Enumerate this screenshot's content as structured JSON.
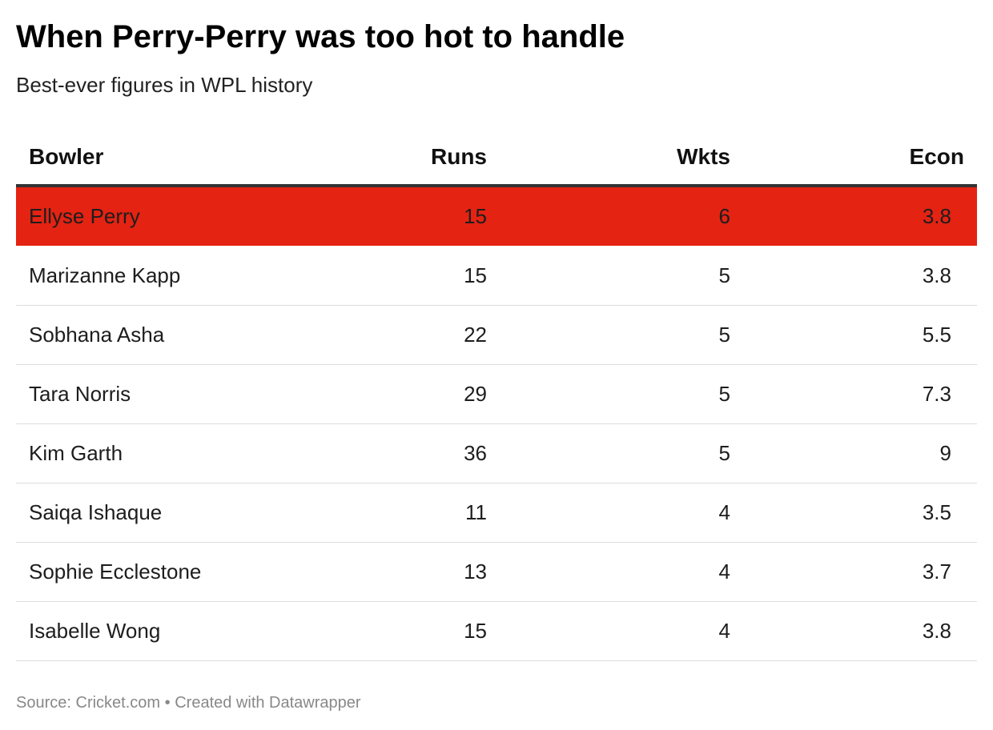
{
  "title": "When Perry-Perry was too hot to handle",
  "subtitle": "Best-ever figures in WPL history",
  "footer": {
    "source_label": "Source:",
    "source_name": "Cricket.com",
    "separator": "•",
    "credit": "Created with Datawrapper"
  },
  "colors": {
    "highlight": "#e42313",
    "header_rule": "#333333",
    "row_divider": "#dddddd",
    "source_text": "#888888"
  },
  "chart_data": {
    "type": "table",
    "title": "When Perry-Perry was too hot to handle",
    "subtitle": "Best-ever figures in WPL history",
    "columns": [
      "Bowler",
      "Runs",
      "Wkts",
      "Econ"
    ],
    "rows": [
      {
        "bowler": "Ellyse Perry",
        "runs": "15",
        "wkts": "6",
        "econ": "3.8",
        "highlighted": true
      },
      {
        "bowler": "Marizanne Kapp",
        "runs": "15",
        "wkts": "5",
        "econ": "3.8",
        "highlighted": false
      },
      {
        "bowler": "Sobhana Asha",
        "runs": "22",
        "wkts": "5",
        "econ": "5.5",
        "highlighted": false
      },
      {
        "bowler": "Tara Norris",
        "runs": "29",
        "wkts": "5",
        "econ": "7.3",
        "highlighted": false
      },
      {
        "bowler": "Kim Garth",
        "runs": "36",
        "wkts": "5",
        "econ": "9",
        "highlighted": false
      },
      {
        "bowler": "Saiqa Ishaque",
        "runs": "11",
        "wkts": "4",
        "econ": "3.5",
        "highlighted": false
      },
      {
        "bowler": "Sophie Ecclestone",
        "runs": "13",
        "wkts": "4",
        "econ": "3.7",
        "highlighted": false
      },
      {
        "bowler": "Isabelle Wong",
        "runs": "15",
        "wkts": "4",
        "econ": "3.8",
        "highlighted": false
      }
    ]
  }
}
